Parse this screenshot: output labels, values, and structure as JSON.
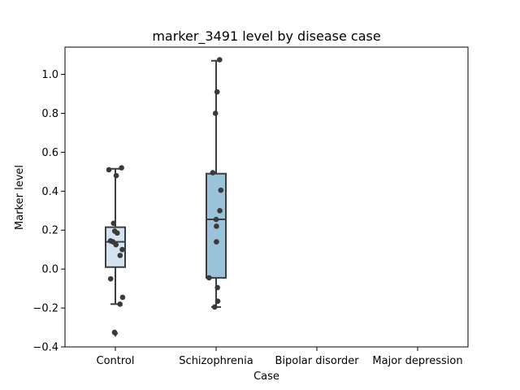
{
  "chart_data": {
    "type": "box",
    "title": "marker_3491 level by disease case",
    "xlabel": "Case",
    "ylabel": "Marker level",
    "ylim": [
      -0.4,
      1.14
    ],
    "yticks": [
      -0.4,
      -0.2,
      0.0,
      0.2,
      0.4,
      0.6,
      0.8,
      1.0
    ],
    "ytick_labels": [
      "−0.4",
      "−0.2",
      "0.0",
      "0.2",
      "0.4",
      "0.6",
      "0.8",
      "1.0"
    ],
    "categories": [
      "Control",
      "Schizophrenia",
      "Bipolar disorder",
      "Major depression"
    ],
    "grid": false,
    "boxes": [
      {
        "category": "Control",
        "q1": 0.01,
        "median": 0.14,
        "q3": 0.215,
        "whisker_low": -0.18,
        "whisker_high": 0.515,
        "outliers": [
          -0.33
        ],
        "color": "#d5e3f0",
        "points": [
          0.52,
          0.51,
          0.48,
          0.235,
          0.195,
          0.185,
          0.145,
          0.14,
          0.125,
          0.1,
          0.07,
          -0.05,
          -0.145,
          -0.18,
          -0.325
        ]
      },
      {
        "category": "Schizophrenia",
        "q1": -0.045,
        "median": 0.255,
        "q3": 0.49,
        "whisker_low": -0.195,
        "whisker_high": 1.07,
        "outliers": [],
        "color": "#9ac2d9",
        "points": [
          1.075,
          0.91,
          0.8,
          0.495,
          0.405,
          0.3,
          0.255,
          0.22,
          0.14,
          -0.045,
          -0.095,
          -0.165,
          -0.195
        ]
      }
    ]
  }
}
